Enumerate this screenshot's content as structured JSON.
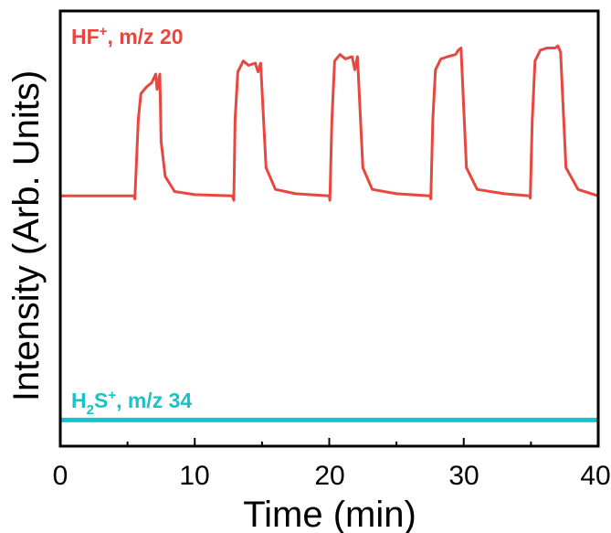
{
  "chart_data": {
    "type": "line",
    "xlabel": "Time (min)",
    "ylabel": "Intensity (Arb. Units)",
    "xlim": [
      0,
      40
    ],
    "ylim": [
      0,
      100
    ],
    "xticks": [
      "0",
      "10",
      "20",
      "30",
      "40"
    ],
    "xminor_ticks": [
      5,
      15,
      25,
      35
    ],
    "yticks": [],
    "grid": false,
    "colors": {
      "hf": "#e8473f",
      "h2s": "#19c2c8",
      "axis": "#000000"
    },
    "annotations": {
      "hf": {
        "base": "HF",
        "sup": "+",
        "rest": ", m/z 20"
      },
      "h2s": {
        "base": "H",
        "sub": "2",
        "mid": "S",
        "sup": "+",
        "rest": ", m/z 34"
      }
    },
    "series": [
      {
        "id": "hf",
        "x": [
          0,
          5.5,
          5.55,
          5.8,
          6.0,
          6.4,
          6.8,
          7.1,
          7.2,
          7.4,
          7.5,
          7.8,
          8.5,
          10,
          12.8,
          12.9,
          13.0,
          13.2,
          13.6,
          14.0,
          14.5,
          14.7,
          14.9,
          15.3,
          16.0,
          17.5,
          20.0,
          20.05,
          20.2,
          20.4,
          20.8,
          21.2,
          21.7,
          21.9,
          22.1,
          22.5,
          23.2,
          25.0,
          27.5,
          27.55,
          27.7,
          27.9,
          28.3,
          28.8,
          29.4,
          29.6,
          29.8,
          30.2,
          31.0,
          33.0,
          34.9,
          34.95,
          35.1,
          35.3,
          35.7,
          36.2,
          36.8,
          37.0,
          37.2,
          37.6,
          38.5,
          40.0
        ],
        "y": [
          57.5,
          57.5,
          56.8,
          75.0,
          81.0,
          82.5,
          83.5,
          85.5,
          82.0,
          85.5,
          70.0,
          62.0,
          58.5,
          57.8,
          57.5,
          56.5,
          75.0,
          86.0,
          88.5,
          87.5,
          88.0,
          86.0,
          88.0,
          64.0,
          59.0,
          58.0,
          57.5,
          56.5,
          75.0,
          88.5,
          90.0,
          89.0,
          89.5,
          86.5,
          89.5,
          64.0,
          59.0,
          58.0,
          57.5,
          56.8,
          75.0,
          86.5,
          89.0,
          89.5,
          90.0,
          91.0,
          91.5,
          64.0,
          59.0,
          58.0,
          57.5,
          57.0,
          75.0,
          88.5,
          91.0,
          91.5,
          91.5,
          92.0,
          90.5,
          64.0,
          59.0,
          57.5
        ]
      },
      {
        "id": "h2s",
        "x": [
          0,
          40
        ],
        "y": [
          6.0,
          6.0
        ]
      }
    ]
  }
}
